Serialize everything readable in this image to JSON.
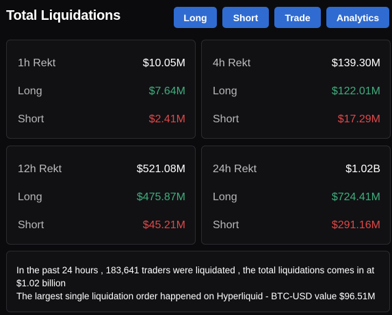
{
  "header": {
    "title": "Total Liquidations",
    "buttons": [
      "Long",
      "Short",
      "Trade",
      "Analytics"
    ]
  },
  "cards": [
    {
      "period": "1h Rekt",
      "total": "$10.05M",
      "long_label": "Long",
      "long": "$7.64M",
      "short_label": "Short",
      "short": "$2.41M"
    },
    {
      "period": "4h Rekt",
      "total": "$139.30M",
      "long_label": "Long",
      "long": "$122.01M",
      "short_label": "Short",
      "short": "$17.29M"
    },
    {
      "period": "12h Rekt",
      "total": "$521.08M",
      "long_label": "Long",
      "long": "$475.87M",
      "short_label": "Short",
      "short": "$45.21M"
    },
    {
      "period": "24h Rekt",
      "total": "$1.02B",
      "long_label": "Long",
      "long": "$724.41M",
      "short_label": "Short",
      "short": "$291.16M"
    }
  ],
  "summary": {
    "line1": "In the past 24 hours , 183,641 traders were liquidated , the total liquidations comes in at $1.02 billion",
    "line2": "The largest single liquidation order happened on Hyperliquid - BTC-USD value $96.51M"
  },
  "colors": {
    "accent": "#2f6bd1",
    "long": "#3fae7c",
    "short": "#e04848"
  }
}
